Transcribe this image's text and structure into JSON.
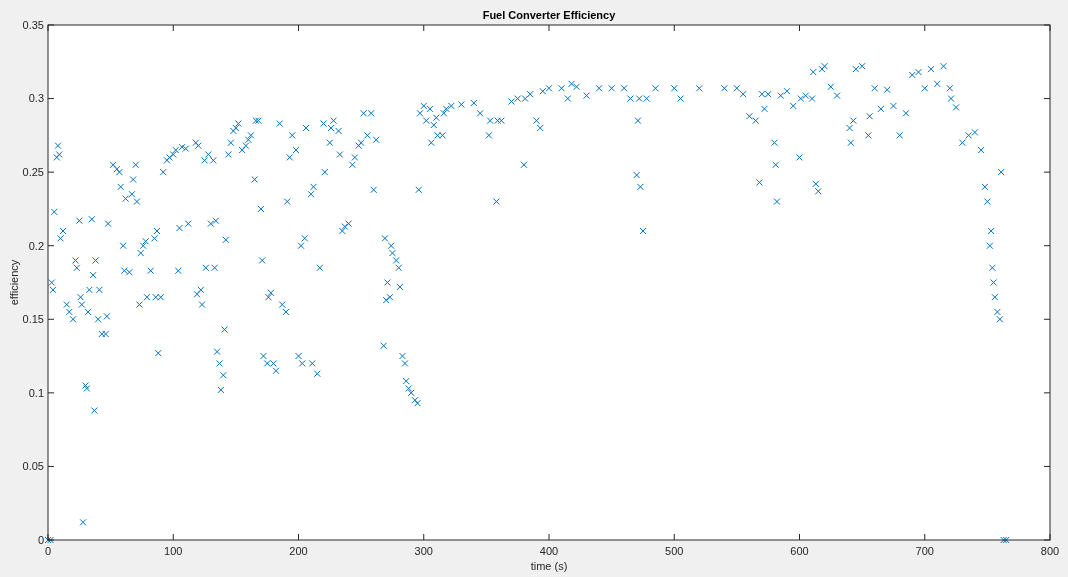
{
  "chart_data": {
    "type": "scatter",
    "title": "Fuel Converter Efficiency",
    "xlabel": "time (s)",
    "ylabel": "efficiency",
    "xlim": [
      0,
      800
    ],
    "xticks": [
      0,
      100,
      200,
      300,
      400,
      500,
      600,
      700,
      800
    ],
    "ylim": [
      0,
      0.35
    ],
    "yticks": [
      0,
      0.05,
      0.1,
      0.15,
      0.2,
      0.25,
      0.3,
      0.35
    ],
    "marker": "cross",
    "series": [
      {
        "color": "#0072bd",
        "x": [
          0,
          2,
          3,
          4,
          5,
          7,
          8,
          9,
          10,
          12,
          15,
          17,
          20,
          22,
          23,
          25,
          26,
          27,
          28,
          30,
          31,
          32,
          33,
          35,
          36,
          37,
          38,
          40,
          41,
          43,
          46,
          47,
          48,
          52,
          55,
          57,
          58,
          60,
          61,
          62,
          65,
          67,
          68,
          70,
          71,
          73,
          74,
          76,
          78,
          79,
          82,
          85,
          86,
          87,
          88,
          90,
          92,
          95,
          97,
          100,
          102,
          104,
          105,
          107,
          110,
          112,
          118,
          119,
          120,
          122,
          123,
          125,
          126,
          128,
          130,
          132,
          133,
          134,
          135,
          137,
          138,
          140,
          141,
          142,
          144,
          146,
          148,
          150,
          152,
          155,
          158,
          160,
          162,
          165,
          166,
          168,
          170,
          171,
          172,
          175,
          176,
          178,
          180,
          182,
          185,
          187,
          190,
          191,
          193,
          195,
          198,
          200,
          202,
          203,
          205,
          206,
          210,
          211,
          212,
          215,
          217,
          220,
          221,
          225,
          226,
          228,
          232,
          233,
          235,
          237,
          240,
          243,
          245,
          248,
          250,
          252,
          255,
          258,
          260,
          262,
          268,
          269,
          270,
          271,
          273,
          274,
          275,
          278,
          280,
          281,
          283,
          285,
          286,
          288,
          290,
          293,
          295,
          296,
          297,
          300,
          302,
          305,
          306,
          308,
          310,
          311,
          315,
          316,
          318,
          322,
          330,
          340,
          345,
          352,
          353,
          358,
          359,
          362,
          370,
          375,
          380,
          381,
          385,
          390,
          393,
          395,
          400,
          410,
          415,
          418,
          422,
          430,
          440,
          450,
          460,
          465,
          470,
          471,
          472,
          473,
          475,
          478,
          485,
          500,
          505,
          520,
          540,
          550,
          555,
          560,
          565,
          568,
          570,
          572,
          575,
          580,
          581,
          582,
          585,
          590,
          595,
          600,
          601,
          605,
          610,
          611,
          613,
          615,
          618,
          620,
          625,
          630,
          640,
          641,
          643,
          645,
          650,
          655,
          656,
          660,
          665,
          670,
          675,
          680,
          685,
          690,
          695,
          700,
          705,
          710,
          715,
          720,
          721,
          725,
          730,
          735,
          740,
          745,
          748,
          750,
          752,
          753,
          754,
          755,
          756,
          758,
          760,
          761,
          763,
          765
        ],
        "values": [
          0,
          0,
          0.175,
          0.17,
          0.223,
          0.26,
          0.268,
          0.262,
          0.205,
          0.21,
          0.16,
          0.155,
          0.15,
          0.19,
          0.185,
          0.217,
          0.165,
          0.16,
          0.012,
          0.105,
          0.103,
          0.155,
          0.17,
          0.218,
          0.18,
          0.088,
          0.19,
          0.15,
          0.17,
          0.14,
          0.14,
          0.152,
          0.215,
          0.255,
          0.252,
          0.25,
          0.24,
          0.2,
          0.183,
          0.232,
          0.182,
          0.235,
          0.245,
          0.255,
          0.23,
          0.16,
          0.195,
          0.2,
          0.203,
          0.165,
          0.183,
          0.205,
          0.165,
          0.21,
          0.127,
          0.165,
          0.25,
          0.258,
          0.26,
          0.262,
          0.265,
          0.183,
          0.212,
          0.267,
          0.266,
          0.215,
          0.27,
          0.167,
          0.268,
          0.17,
          0.16,
          0.258,
          0.185,
          0.262,
          0.215,
          0.258,
          0.185,
          0.217,
          0.128,
          0.12,
          0.102,
          0.112,
          0.143,
          0.204,
          0.262,
          0.27,
          0.278,
          0.28,
          0.283,
          0.265,
          0.268,
          0.272,
          0.275,
          0.245,
          0.285,
          0.285,
          0.225,
          0.19,
          0.125,
          0.12,
          0.165,
          0.168,
          0.12,
          0.115,
          0.283,
          0.16,
          0.155,
          0.23,
          0.26,
          0.275,
          0.265,
          0.125,
          0.2,
          0.12,
          0.205,
          0.28,
          0.235,
          0.12,
          0.24,
          0.113,
          0.185,
          0.283,
          0.25,
          0.27,
          0.28,
          0.285,
          0.278,
          0.262,
          0.21,
          0.213,
          0.215,
          0.255,
          0.26,
          0.268,
          0.27,
          0.29,
          0.275,
          0.29,
          0.238,
          0.272,
          0.132,
          0.205,
          0.163,
          0.175,
          0.165,
          0.2,
          0.195,
          0.19,
          0.185,
          0.172,
          0.125,
          0.12,
          0.108,
          0.103,
          0.1,
          0.095,
          0.093,
          0.238,
          0.29,
          0.295,
          0.285,
          0.293,
          0.27,
          0.282,
          0.287,
          0.275,
          0.275,
          0.29,
          0.293,
          0.295,
          0.296,
          0.297,
          0.29,
          0.275,
          0.285,
          0.23,
          0.285,
          0.285,
          0.298,
          0.3,
          0.255,
          0.3,
          0.303,
          0.285,
          0.28,
          0.305,
          0.307,
          0.307,
          0.3,
          0.31,
          0.308,
          0.302,
          0.307,
          0.307,
          0.307,
          0.3,
          0.248,
          0.285,
          0.3,
          0.24,
          0.21,
          0.3,
          0.307,
          0.307,
          0.3,
          0.307,
          0.307,
          0.307,
          0.303,
          0.288,
          0.285,
          0.243,
          0.303,
          0.293,
          0.303,
          0.27,
          0.255,
          0.23,
          0.302,
          0.305,
          0.295,
          0.26,
          0.3,
          0.302,
          0.3,
          0.318,
          0.242,
          0.237,
          0.32,
          0.322,
          0.308,
          0.302,
          0.28,
          0.27,
          0.285,
          0.32,
          0.322,
          0.275,
          0.288,
          0.307,
          0.293,
          0.306,
          0.295,
          0.275,
          0.29,
          0.316,
          0.318,
          0.307,
          0.32,
          0.31,
          0.322,
          0.307,
          0.3,
          0.294,
          0.27,
          0.275,
          0.277,
          0.265,
          0.24,
          0.23,
          0.2,
          0.21,
          0.185,
          0.175,
          0.165,
          0.155,
          0.15,
          0.25,
          0,
          0
        ]
      }
    ]
  }
}
